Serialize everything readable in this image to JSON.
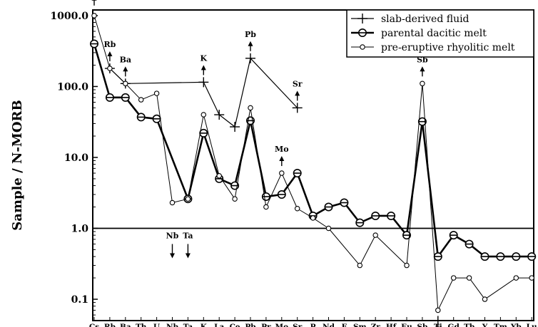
{
  "chart_data": {
    "type": "line",
    "ylabel": "Sample / N-MORB",
    "yscale": "log",
    "ylim": [
      0.05,
      1200
    ],
    "y_ticks": [
      {
        "value": 1000,
        "label": "1000.0"
      },
      {
        "value": 100,
        "label": "100.0"
      },
      {
        "value": 10,
        "label": "10.0"
      },
      {
        "value": 1,
        "label": "1.0"
      },
      {
        "value": 0.1,
        "label": "0.1"
      }
    ],
    "reference_line": 1.0,
    "categories": [
      "Cs",
      "Rb",
      "Ba",
      "Th",
      "U",
      "Nb",
      "Ta",
      "K",
      "La",
      "Ce",
      "Pb",
      "Pr",
      "Mo",
      "Sr",
      "P",
      "Nd",
      "F",
      "Sm",
      "Zr",
      "Hf",
      "Eu",
      "Sb",
      "Ti",
      "Gd",
      "Tb",
      "Y",
      "Tm",
      "Yb",
      "Lu"
    ],
    "legend_position": "top-right",
    "series": [
      {
        "name": "slab-derived fluid",
        "marker": "plus",
        "points": [
          {
            "x": "Rb",
            "y": 180
          },
          {
            "x": "Ba",
            "y": 110
          },
          {
            "x": "K",
            "y": 115
          },
          {
            "x": "La",
            "y": 40
          },
          {
            "x": "Ce",
            "y": 27
          },
          {
            "x": "Pb",
            "y": 250
          },
          {
            "x": "Sr",
            "y": 50
          }
        ]
      },
      {
        "name": "parental dacitic melt",
        "marker": "circle-bar",
        "points": [
          {
            "x": "Cs",
            "y": 400
          },
          {
            "x": "Rb",
            "y": 70
          },
          {
            "x": "Ba",
            "y": 70
          },
          {
            "x": "Th",
            "y": 37
          },
          {
            "x": "U",
            "y": 35
          },
          {
            "x": "Ta",
            "y": 2.6
          },
          {
            "x": "K",
            "y": 22
          },
          {
            "x": "La",
            "y": 5
          },
          {
            "x": "Ce",
            "y": 4
          },
          {
            "x": "Pb",
            "y": 33
          },
          {
            "x": "Pr",
            "y": 2.8
          },
          {
            "x": "Mo",
            "y": 3
          },
          {
            "x": "Sr",
            "y": 6
          },
          {
            "x": "P",
            "y": 1.5
          },
          {
            "x": "Nd",
            "y": 2
          },
          {
            "x": "F",
            "y": 2.3
          },
          {
            "x": "Sm",
            "y": 1.2
          },
          {
            "x": "Zr",
            "y": 1.5
          },
          {
            "x": "Hf",
            "y": 1.5
          },
          {
            "x": "Eu",
            "y": 0.8
          },
          {
            "x": "Sb",
            "y": 32
          },
          {
            "x": "Ti",
            "y": 0.4
          },
          {
            "x": "Gd",
            "y": 0.8
          },
          {
            "x": "Tb",
            "y": 0.6
          },
          {
            "x": "Y",
            "y": 0.4
          },
          {
            "x": "Tm",
            "y": 0.4
          },
          {
            "x": "Yb",
            "y": 0.4
          },
          {
            "x": "Lu",
            "y": 0.4
          }
        ]
      },
      {
        "name": "pre-eruptive rhyolitic melt",
        "marker": "small-circle",
        "points": [
          {
            "x": "Cs",
            "y": 1000
          },
          {
            "x": "Rb",
            "y": 180
          },
          {
            "x": "Ba",
            "y": 110
          },
          {
            "x": "Th",
            "y": 65
          },
          {
            "x": "U",
            "y": 80
          },
          {
            "x": "Nb",
            "y": 2.3
          },
          {
            "x": "Ta",
            "y": 2.6
          },
          {
            "x": "K",
            "y": 40
          },
          {
            "x": "La",
            "y": 5.5
          },
          {
            "x": "Ce",
            "y": 2.6
          },
          {
            "x": "Pb",
            "y": 50
          },
          {
            "x": "Pr",
            "y": 2
          },
          {
            "x": "Mo",
            "y": 6
          },
          {
            "x": "Sr",
            "y": 1.9
          },
          {
            "x": "P",
            "y": 1.4
          },
          {
            "x": "Nd",
            "y": 1
          },
          {
            "x": "Sm",
            "y": 0.3
          },
          {
            "x": "Zr",
            "y": 0.8
          },
          {
            "x": "Eu",
            "y": 0.3
          },
          {
            "x": "Sb",
            "y": 110
          },
          {
            "x": "Ti",
            "y": 0.07
          },
          {
            "x": "Gd",
            "y": 0.2
          },
          {
            "x": "Tb",
            "y": 0.2
          },
          {
            "x": "Y",
            "y": 0.1
          },
          {
            "x": "Yb",
            "y": 0.2
          },
          {
            "x": "Lu",
            "y": 0.2
          }
        ]
      }
    ],
    "annotations": [
      {
        "text": "Cs",
        "at": "Cs",
        "value": 1100,
        "arrow": "up"
      },
      {
        "text": "Rb",
        "at": "Rb",
        "value": 180,
        "arrow": "up"
      },
      {
        "text": "Ba",
        "at": "Ba",
        "value": 110,
        "arrow": "up"
      },
      {
        "text": "K",
        "at": "K",
        "value": 115,
        "arrow": "up"
      },
      {
        "text": "Pb",
        "at": "Pb",
        "value": 250,
        "arrow": "up"
      },
      {
        "text": "Sr",
        "at": "Sr",
        "value": 50,
        "arrow": "up"
      },
      {
        "text": "Mo",
        "at": "Mo",
        "value": 6,
        "arrow": "up"
      },
      {
        "text": "Sb",
        "at": "Sb",
        "value": 110,
        "arrow": "up"
      },
      {
        "text": "Nb",
        "at": "Nb",
        "value": 1,
        "arrow": "down"
      },
      {
        "text": "Ta",
        "at": "Ta",
        "value": 1,
        "arrow": "down"
      },
      {
        "text": "",
        "at": "Ti",
        "value": 0.07,
        "arrow": "down"
      }
    ]
  }
}
